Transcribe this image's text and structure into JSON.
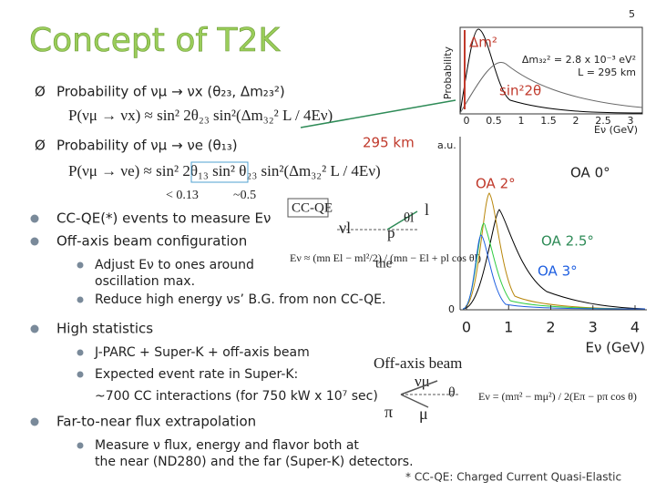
{
  "page_number": "5",
  "title": "Concept of T2K",
  "sections": {
    "prob_mux": {
      "heading": "Probability of νμ → νx (θ₂₃, Δm₂₃²)",
      "formula": "P(νμ → νx) ≈ sin² 2θ₂₃ sin²(Δm₃₂² L / 4Eν)"
    },
    "prob_mue": {
      "heading": "Probability of νμ → νe (θ₁₃)",
      "formula": "P(νμ → νe) ≈ sin² 2θ₁₃ sin² θ₂₃ sin²(Δm₃₂² L / 4Eν)",
      "note_13": "< 0.13",
      "note_23": "~0.5"
    },
    "baseline": "295 km"
  },
  "bullets": {
    "ccqe": "CC-QE(*) events to measure Eν",
    "offaxis": "Off-axis beam configuration",
    "offaxis_sub": [
      [
        "Adjust Eν to ones around",
        "oscillation max."
      ],
      [
        "Reduce high energy νs’ B.G. from non CC-QE."
      ]
    ],
    "stats": "High statistics",
    "stats_sub": [
      "J-PARC + Super-K + off-axis beam",
      "Expected event rate in Super-K:",
      "~700 CC interactions (for 750 kW x 10⁷ sec)"
    ],
    "extrap": "Far-to-near flux extrapolation",
    "extrap_sub": [
      "Measure ν flux, energy and flavor both at",
      "the near (ND280) and the far (Super-K) detectors."
    ]
  },
  "ccqe_diagram": {
    "label": "CC-QE",
    "neutrino": "νl",
    "proton": "p",
    "angle": "θl",
    "lepton": "l",
    "overlay": "the",
    "formula": "Eν ≈ (mn El − ml²/2) / (mn − El + pl cos θl)"
  },
  "offaxis_diagram": {
    "label": "Off-axis beam",
    "neutrino": "νμ",
    "pion": "π",
    "muon": "μ",
    "angle": "θ",
    "formula": "Eν = (mπ² − mμ²) / 2(Eπ − pπ cos θ)"
  },
  "prob_plot": {
    "y_label": "Probability",
    "amplitude": "Δm²",
    "params": [
      "Δm₃₂² = 2.8 x 10⁻³ eV²",
      "L = 295 km"
    ],
    "mixing": "sin²2θ",
    "x_label": "Eν (GeV)",
    "xticks": [
      "0",
      "0.5",
      "1",
      "1.5",
      "2",
      "2.5",
      "3"
    ]
  },
  "flux_plot": {
    "y_label": "a.u.",
    "y_zero": "0",
    "curves": [
      "OA 0°",
      "OA 2°",
      "OA 2.5°",
      "OA 3°"
    ],
    "x_label": "Eν (GeV)",
    "xticks": [
      "0",
      "1",
      "2",
      "3",
      "4"
    ]
  },
  "footnote": "* CC-QE: Charged Current Quasi-Elastic"
}
